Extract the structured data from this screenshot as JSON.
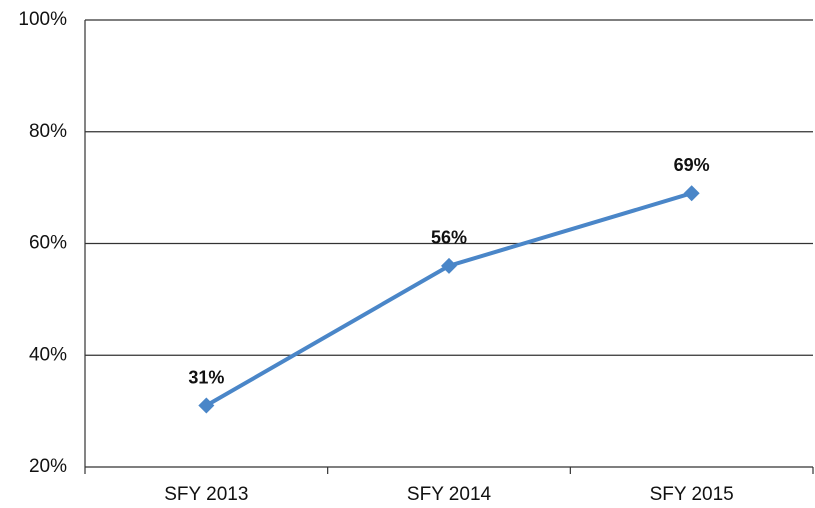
{
  "chart_data": {
    "type": "line",
    "categories": [
      "SFY 2013",
      "SFY 2014",
      "SFY 2015"
    ],
    "series": [
      {
        "color": "#4a86c8",
        "values": [
          31,
          56,
          69
        ],
        "value_labels": [
          "31%",
          "56%",
          "69%"
        ]
      }
    ],
    "ylim": [
      20,
      100
    ],
    "yticks": [
      {
        "value": 20,
        "label": "20%"
      },
      {
        "value": 40,
        "label": "40%"
      },
      {
        "value": 60,
        "label": "60%"
      },
      {
        "value": 80,
        "label": "80%"
      },
      {
        "value": 100,
        "label": "100%"
      }
    ],
    "grid": true
  }
}
